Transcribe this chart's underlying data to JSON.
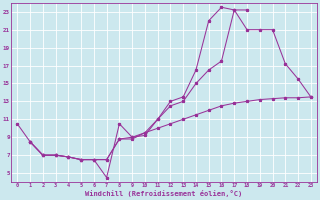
{
  "xlabel": "Windchill (Refroidissement éolien,°C)",
  "bg_color": "#cce8ee",
  "line_color": "#993399",
  "xlim_min": -0.5,
  "xlim_max": 23.5,
  "ylim_min": 4.0,
  "ylim_max": 24.0,
  "xticks": [
    0,
    1,
    2,
    3,
    4,
    5,
    6,
    7,
    8,
    9,
    10,
    11,
    12,
    13,
    14,
    15,
    16,
    17,
    18,
    19,
    20,
    21,
    22,
    23
  ],
  "yticks": [
    5,
    7,
    9,
    11,
    13,
    15,
    17,
    19,
    21,
    23
  ],
  "curve1_x": [
    0,
    1,
    2,
    3,
    4,
    5,
    6,
    7,
    8,
    9,
    10,
    11,
    12,
    13,
    14,
    15,
    16,
    17,
    18
  ],
  "curve1_y": [
    10.5,
    8.5,
    7.0,
    7.0,
    6.8,
    6.5,
    6.5,
    4.5,
    10.5,
    9.0,
    9.2,
    11.0,
    13.0,
    13.5,
    16.5,
    22.0,
    23.5,
    23.2,
    23.2
  ],
  "curve2_x": [
    1,
    2,
    3,
    4,
    5,
    6,
    7,
    8,
    9,
    10,
    11,
    12,
    13,
    14,
    15,
    16,
    17,
    18,
    19,
    20,
    21,
    22,
    23
  ],
  "curve2_y": [
    8.5,
    7.0,
    7.0,
    6.8,
    6.5,
    6.5,
    6.5,
    8.8,
    8.8,
    9.5,
    11.0,
    12.5,
    13.0,
    15.0,
    16.5,
    17.5,
    23.2,
    21.0,
    21.0,
    21.0,
    17.2,
    15.5,
    13.5
  ],
  "curve3_x": [
    1,
    2,
    3,
    4,
    5,
    6,
    7,
    8,
    9,
    10,
    11,
    12,
    13,
    14,
    15,
    16,
    17,
    18,
    19,
    20,
    21,
    22,
    23
  ],
  "curve3_y": [
    8.5,
    7.0,
    7.0,
    6.8,
    6.5,
    6.5,
    6.5,
    8.8,
    9.0,
    9.5,
    10.0,
    10.5,
    11.0,
    11.5,
    12.0,
    12.5,
    12.8,
    13.0,
    13.2,
    13.3,
    13.4,
    13.4,
    13.5
  ]
}
